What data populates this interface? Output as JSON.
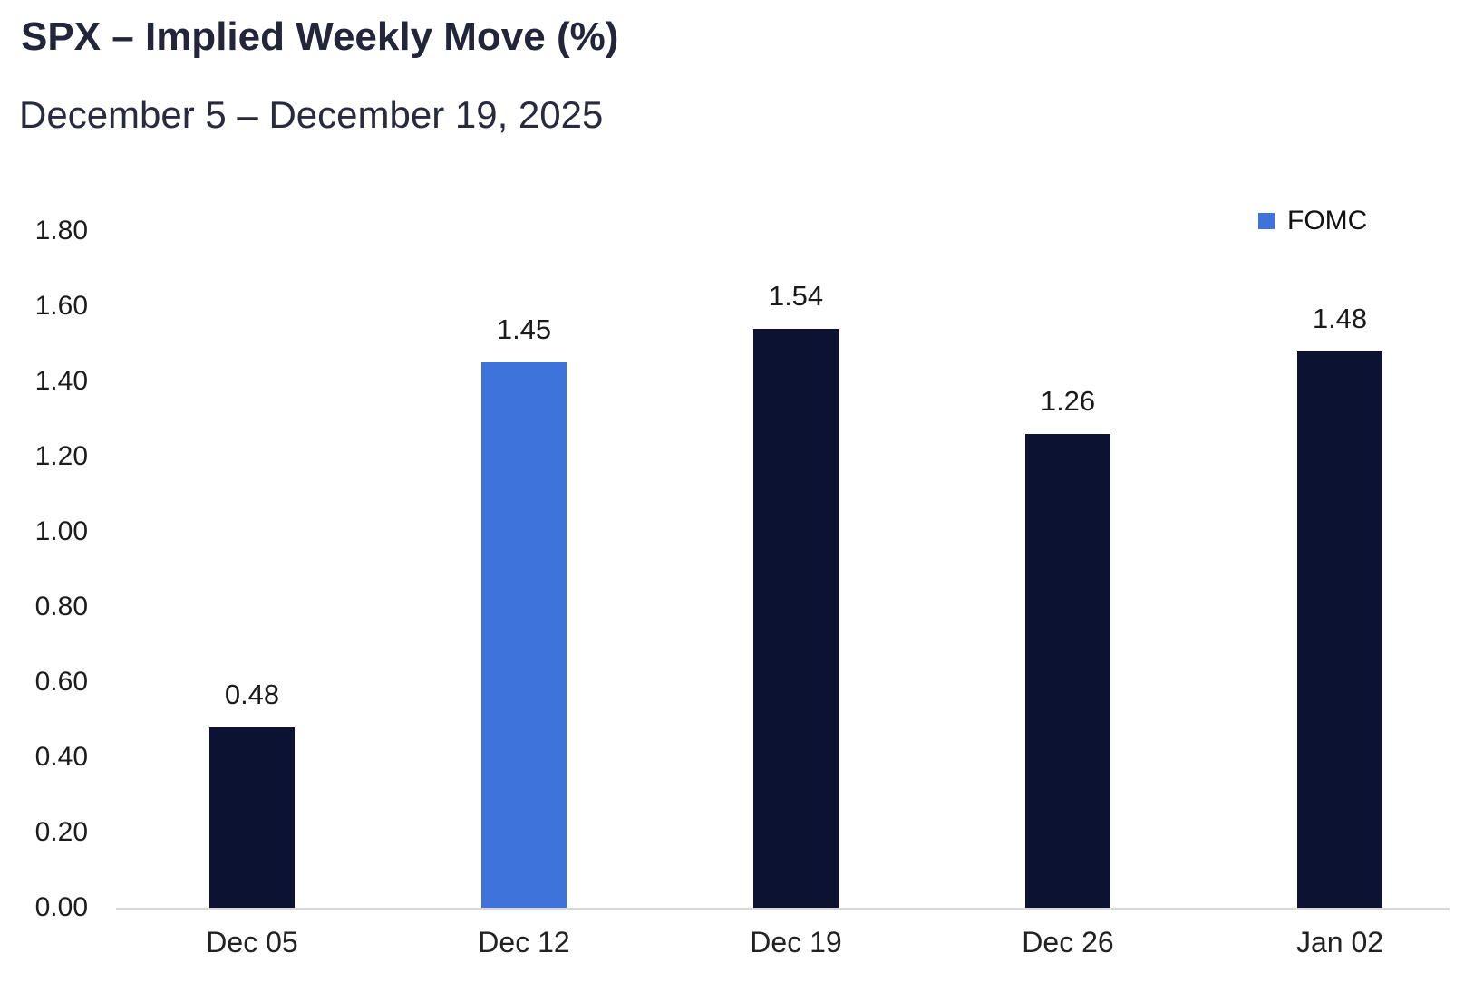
{
  "header": {
    "title": "SPX – Implied Weekly Move (%)",
    "subtitle": "December 5 – December 19, 2025"
  },
  "legend": {
    "label": "FOMC"
  },
  "colors": {
    "bar_default": "#0b1232",
    "bar_fomc": "#3e73db",
    "title_text": "#23263a",
    "axis_line": "#d8d8d8",
    "label_text": "#1a1a1a"
  },
  "chart_data": {
    "type": "bar",
    "title": "SPX – Implied Weekly Move (%)",
    "subtitle": "December 5 – December 19, 2025",
    "categories": [
      "Dec 05",
      "Dec 12",
      "Dec 19",
      "Dec 26",
      "Jan 02"
    ],
    "values": [
      0.48,
      1.45,
      1.54,
      1.26,
      1.48
    ],
    "data_labels": [
      "0.48",
      "1.45",
      "1.54",
      "1.26",
      "1.48"
    ],
    "highlight_index": 1,
    "highlight_name": "FOMC",
    "xlabel": "",
    "ylabel": "",
    "ylim": [
      0,
      1.8
    ],
    "ytick_step": 0.2,
    "yticks": [
      "1.80",
      "1.60",
      "1.40",
      "1.20",
      "1.00",
      "0.80",
      "0.60",
      "0.40",
      "0.20",
      "0.00"
    ],
    "grid": false,
    "legend_position": "top-right",
    "legend_entries": [
      "FOMC"
    ]
  }
}
